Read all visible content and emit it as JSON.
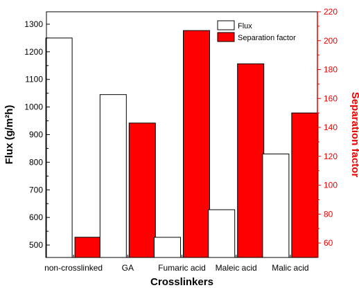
{
  "chart_data": {
    "type": "bar",
    "categories": [
      "non-crosslinked",
      "GA",
      "Fumaric acid",
      "Maleic acid",
      "Malic acid"
    ],
    "xlabel": "Crosslinkers",
    "series": [
      {
        "name": "Flux",
        "axis": "left",
        "fill": "#ffffff",
        "stroke": "#000000",
        "values": [
          1250,
          1045,
          528,
          628,
          830
        ]
      },
      {
        "name": "Separation factor",
        "axis": "right",
        "fill": "#ff0000",
        "stroke": "#000000",
        "values": [
          64,
          143,
          207,
          184,
          150
        ]
      }
    ],
    "y_left": {
      "label": "Flux (g/m²h)",
      "ticks": [
        "500",
        "600",
        "700",
        "800",
        "900",
        "1000",
        "1100",
        "1200",
        "1300"
      ],
      "range": [
        455,
        1345
      ],
      "color": "#000000"
    },
    "y_right": {
      "label": "Separation factor",
      "ticks": [
        "60",
        "80",
        "100",
        "120",
        "140",
        "160",
        "180",
        "200",
        "220"
      ],
      "range": [
        50,
        220
      ],
      "color": "#ee0000"
    },
    "legend": {
      "position": "top-right"
    }
  }
}
